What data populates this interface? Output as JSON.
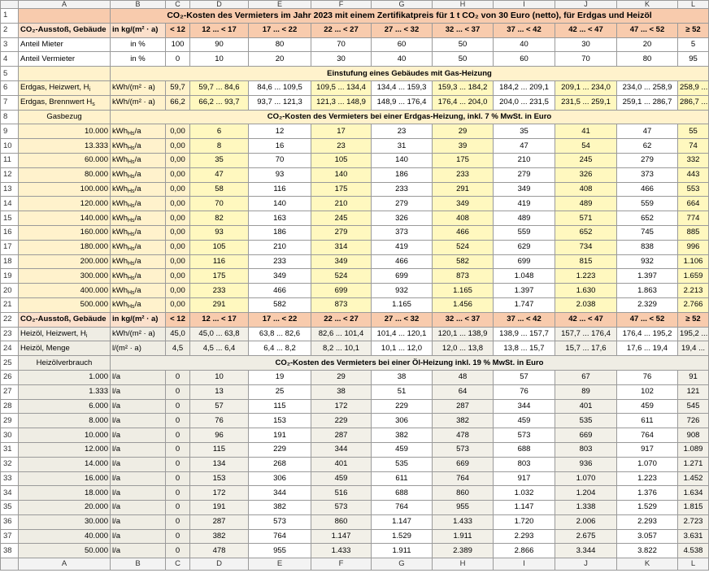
{
  "columns": [
    "A",
    "B",
    "C",
    "D",
    "E",
    "F",
    "G",
    "H",
    "I",
    "J",
    "K",
    "L"
  ],
  "rows": [
    {
      "number": "1",
      "title": "CO₂-Kosten des Vermieters im Jahr 2023 mit einem Zertifikatpreis für 1 t CO₂ von 30 Euro (netto), für Erdgas und Heizöl"
    },
    {
      "number": "2",
      "cells": [
        "CO₂-Ausstoß, Gebäude",
        "in kg/(m² · a)",
        "< 12",
        "12 ... < 17",
        "17 ... < 22",
        "22 ... < 27",
        "27 ... < 32",
        "32 ... < 37",
        "37 ... < 42",
        "42 ... < 47",
        "47 ... < 52",
        "≥ 52"
      ]
    },
    {
      "number": "3",
      "cells": [
        "Anteil Mieter",
        "in %",
        "100",
        "90",
        "80",
        "70",
        "60",
        "50",
        "40",
        "30",
        "20",
        "5"
      ]
    },
    {
      "number": "4",
      "cells": [
        "Anteil Vermieter",
        "in %",
        "0",
        "10",
        "20",
        "30",
        "40",
        "50",
        "60",
        "70",
        "80",
        "95"
      ]
    },
    {
      "number": "5",
      "title": "Einstufung eines Gebäudes mit Gas-Heizung"
    },
    {
      "number": "6",
      "cells": [
        {
          "text": "Erdgas, Heizwert, H",
          "sub": "i"
        },
        "kWh/(m² · a)",
        "59,7",
        "59,7 ... 84,6",
        "84,6 ... 109,5",
        "109,5 ... 134,4",
        "134,4 ... 159,3",
        "159,3 ... 184,2",
        "184,2 ... 209,1",
        "209,1 ... 234,0",
        "234,0 ... 258,9",
        "258,9 ..."
      ]
    },
    {
      "number": "7",
      "cells": [
        {
          "text": "Erdgas, Brennwert H",
          "sub": "s"
        },
        "kWh/(m² · a)",
        "66,2",
        "66,2 ... 93,7",
        "93,7 ... 121,3",
        "121,3 ... 148,9",
        "148,9 ... 176,4",
        "176,4 ... 204,0",
        "204,0 ... 231,5",
        "231,5 ... 259,1",
        "259,1 ... 286,7",
        "286,7 ..."
      ]
    },
    {
      "number": "8",
      "label": "Gasbezug",
      "title": "CO₂-Kosten des Vermieters bei einer Erdgas-Heizung, inkl. 7 % MwSt. in Euro"
    },
    {
      "number": "9",
      "cells": [
        "10.000",
        {
          "text": "kWh",
          "sub": "Hs",
          "tail": "/a"
        },
        "0,00",
        "6",
        "12",
        "17",
        "23",
        "29",
        "35",
        "41",
        "47",
        "55"
      ]
    },
    {
      "number": "10",
      "cells": [
        "13.333",
        {
          "text": "kWh",
          "sub": "Hs",
          "tail": "/a"
        },
        "0,00",
        "8",
        "16",
        "23",
        "31",
        "39",
        "47",
        "54",
        "62",
        "74"
      ]
    },
    {
      "number": "11",
      "cells": [
        "60.000",
        {
          "text": "kWh",
          "sub": "Hs",
          "tail": "/a"
        },
        "0,00",
        "35",
        "70",
        "105",
        "140",
        "175",
        "210",
        "245",
        "279",
        "332"
      ]
    },
    {
      "number": "12",
      "cells": [
        "80.000",
        {
          "text": "kWh",
          "sub": "Hs",
          "tail": "/a"
        },
        "0,00",
        "47",
        "93",
        "140",
        "186",
        "233",
        "279",
        "326",
        "373",
        "443"
      ]
    },
    {
      "number": "13",
      "cells": [
        "100.000",
        {
          "text": "kWh",
          "sub": "Hs",
          "tail": "/a"
        },
        "0,00",
        "58",
        "116",
        "175",
        "233",
        "291",
        "349",
        "408",
        "466",
        "553"
      ]
    },
    {
      "number": "14",
      "cells": [
        "120.000",
        {
          "text": "kWh",
          "sub": "Hs",
          "tail": "/a"
        },
        "0,00",
        "70",
        "140",
        "210",
        "279",
        "349",
        "419",
        "489",
        "559",
        "664"
      ]
    },
    {
      "number": "15",
      "cells": [
        "140.000",
        {
          "text": "kWh",
          "sub": "Hs",
          "tail": "/a"
        },
        "0,00",
        "82",
        "163",
        "245",
        "326",
        "408",
        "489",
        "571",
        "652",
        "774"
      ]
    },
    {
      "number": "16",
      "cells": [
        "160.000",
        {
          "text": "kWh",
          "sub": "Hs",
          "tail": "/a"
        },
        "0,00",
        "93",
        "186",
        "279",
        "373",
        "466",
        "559",
        "652",
        "745",
        "885"
      ]
    },
    {
      "number": "17",
      "cells": [
        "180.000",
        {
          "text": "kWh",
          "sub": "Hs",
          "tail": "/a"
        },
        "0,00",
        "105",
        "210",
        "314",
        "419",
        "524",
        "629",
        "734",
        "838",
        "996"
      ]
    },
    {
      "number": "18",
      "cells": [
        "200.000",
        {
          "text": "kWh",
          "sub": "Hs",
          "tail": "/a"
        },
        "0,00",
        "116",
        "233",
        "349",
        "466",
        "582",
        "699",
        "815",
        "932",
        "1.106"
      ]
    },
    {
      "number": "19",
      "cells": [
        "300.000",
        {
          "text": "kWh",
          "sub": "Hs",
          "tail": "/a"
        },
        "0,00",
        "175",
        "349",
        "524",
        "699",
        "873",
        "1.048",
        "1.223",
        "1.397",
        "1.659"
      ]
    },
    {
      "number": "20",
      "cells": [
        "400.000",
        {
          "text": "kWh",
          "sub": "Hs",
          "tail": "/a"
        },
        "0,00",
        "233",
        "466",
        "699",
        "932",
        "1.165",
        "1.397",
        "1.630",
        "1.863",
        "2.213"
      ]
    },
    {
      "number": "21",
      "cells": [
        "500.000",
        {
          "text": "kWh",
          "sub": "Hs",
          "tail": "/a"
        },
        "0,00",
        "291",
        "582",
        "873",
        "1.165",
        "1.456",
        "1.747",
        "2.038",
        "2.329",
        "2.766"
      ]
    },
    {
      "number": "22",
      "cells": [
        "CO₂-Ausstoß, Gebäude",
        "in kg/(m² · a)",
        "< 12",
        "12 ... < 17",
        "17 ... < 22",
        "22 ... < 27",
        "27 ... < 32",
        "32 ... < 37",
        "37 ... < 42",
        "42 ... < 47",
        "47 ... < 52",
        "≥ 52"
      ]
    },
    {
      "number": "23",
      "cells": [
        {
          "text": "Heizöl, Heizwert, H",
          "sub": "i"
        },
        "kWh/(m² · a)",
        "45,0",
        "45,0 ... 63,8",
        "63,8 ... 82,6",
        "82,6 ... 101,4",
        "101,4 ... 120,1",
        "120,1 ... 138,9",
        "138,9 ... 157,7",
        "157,7 ... 176,4",
        "176,4 ... 195,2",
        "195,2 ..."
      ]
    },
    {
      "number": "24",
      "cells": [
        "Heizöl, Menge",
        "l/(m² · a)",
        "4,5",
        "4,5 ... 6,4",
        "6,4 ... 8,2",
        "8,2 ... 10,1",
        "10,1 ... 12,0",
        "12,0 ... 13,8",
        "13,8 ... 15,7",
        "15,7 ... 17,6",
        "17,6 ... 19,4",
        "19,4 ..."
      ]
    },
    {
      "number": "25",
      "label": "Heizölverbrauch",
      "title": "CO₂-Kosten des Vermieters bei einer Öl-Heizung inkl. 19 % MwSt. in Euro"
    },
    {
      "number": "26",
      "cells": [
        "1.000",
        "l/a",
        "0",
        "10",
        "19",
        "29",
        "38",
        "48",
        "57",
        "67",
        "76",
        "91"
      ]
    },
    {
      "number": "27",
      "cells": [
        "1.333",
        "l/a",
        "0",
        "13",
        "25",
        "38",
        "51",
        "64",
        "76",
        "89",
        "102",
        "121"
      ]
    },
    {
      "number": "28",
      "cells": [
        "6.000",
        "l/a",
        "0",
        "57",
        "115",
        "172",
        "229",
        "287",
        "344",
        "401",
        "459",
        "545"
      ]
    },
    {
      "number": "29",
      "cells": [
        "8.000",
        "l/a",
        "0",
        "76",
        "153",
        "229",
        "306",
        "382",
        "459",
        "535",
        "611",
        "726"
      ]
    },
    {
      "number": "30",
      "cells": [
        "10.000",
        "l/a",
        "0",
        "96",
        "191",
        "287",
        "382",
        "478",
        "573",
        "669",
        "764",
        "908"
      ]
    },
    {
      "number": "31",
      "cells": [
        "12.000",
        "l/a",
        "0",
        "115",
        "229",
        "344",
        "459",
        "573",
        "688",
        "803",
        "917",
        "1.089"
      ]
    },
    {
      "number": "32",
      "cells": [
        "14.000",
        "l/a",
        "0",
        "134",
        "268",
        "401",
        "535",
        "669",
        "803",
        "936",
        "1.070",
        "1.271"
      ]
    },
    {
      "number": "33",
      "cells": [
        "16.000",
        "l/a",
        "0",
        "153",
        "306",
        "459",
        "611",
        "764",
        "917",
        "1.070",
        "1.223",
        "1.452"
      ]
    },
    {
      "number": "34",
      "cells": [
        "18.000",
        "l/a",
        "0",
        "172",
        "344",
        "516",
        "688",
        "860",
        "1.032",
        "1.204",
        "1.376",
        "1.634"
      ]
    },
    {
      "number": "35",
      "cells": [
        "20.000",
        "l/a",
        "0",
        "191",
        "382",
        "573",
        "764",
        "955",
        "1.147",
        "1.338",
        "1.529",
        "1.815"
      ]
    },
    {
      "number": "36",
      "cells": [
        "30.000",
        "l/a",
        "0",
        "287",
        "573",
        "860",
        "1.147",
        "1.433",
        "1.720",
        "2.006",
        "2.293",
        "2.723"
      ]
    },
    {
      "number": "37",
      "cells": [
        "40.000",
        "l/a",
        "0",
        "382",
        "764",
        "1.147",
        "1.529",
        "1.911",
        "2.293",
        "2.675",
        "3.057",
        "3.631"
      ]
    },
    {
      "number": "38",
      "cells": [
        "50.000",
        "l/a",
        "0",
        "478",
        "955",
        "1.433",
        "1.911",
        "2.389",
        "2.866",
        "3.344",
        "3.822",
        "4.538"
      ]
    }
  ]
}
